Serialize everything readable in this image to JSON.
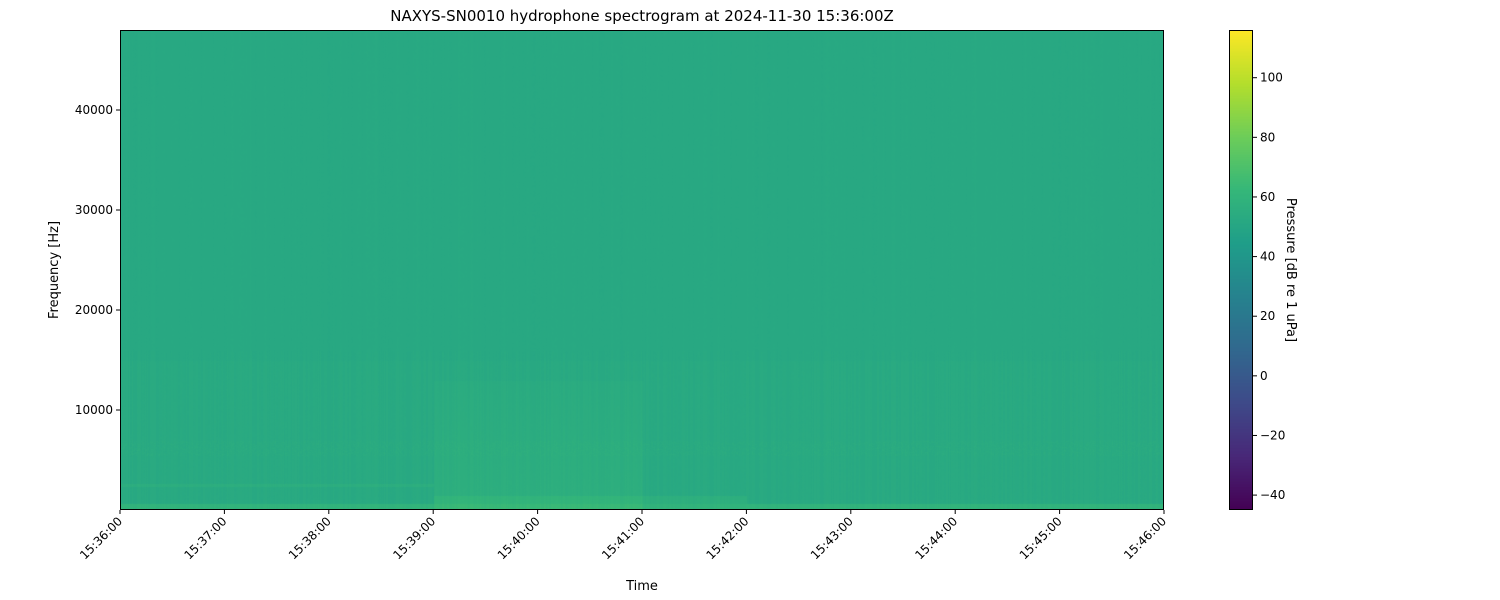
{
  "chart_data": {
    "type": "heatmap",
    "title": "NAXYS-SN0010 hydrophone spectrogram at 2024-11-30 15:36:00Z",
    "xlabel": "Time",
    "ylabel": "Frequency [Hz]",
    "x_ticks": [
      "15:36:00",
      "15:37:00",
      "15:38:00",
      "15:39:00",
      "15:40:00",
      "15:41:00",
      "15:42:00",
      "15:43:00",
      "15:44:00",
      "15:45:00",
      "15:46:00"
    ],
    "xlim": [
      "15:36:00",
      "15:46:00"
    ],
    "y_ticks": [
      10000,
      20000,
      30000,
      40000
    ],
    "ylim": [
      0,
      48000
    ],
    "colorbar": {
      "label": "Pressure [dB re 1 uPa]",
      "colormap": "viridis",
      "range": [
        -45,
        116
      ],
      "ticks": [
        -40,
        -20,
        0,
        20,
        40,
        60,
        80,
        100
      ]
    },
    "features": [
      {
        "description_value": "background level",
        "db": 52
      },
      {
        "tone_hz": 2500,
        "from": "15:36:00",
        "to": "15:39:00",
        "db": 56
      },
      {
        "broadband_hz": [
          0,
          13000
        ],
        "from": "15:39:00",
        "to": "15:41:00",
        "db": 58
      },
      {
        "low_band_hz": [
          0,
          500
        ],
        "from": "15:36:00",
        "to": "15:46:00",
        "db": 62
      }
    ],
    "grid": false
  }
}
